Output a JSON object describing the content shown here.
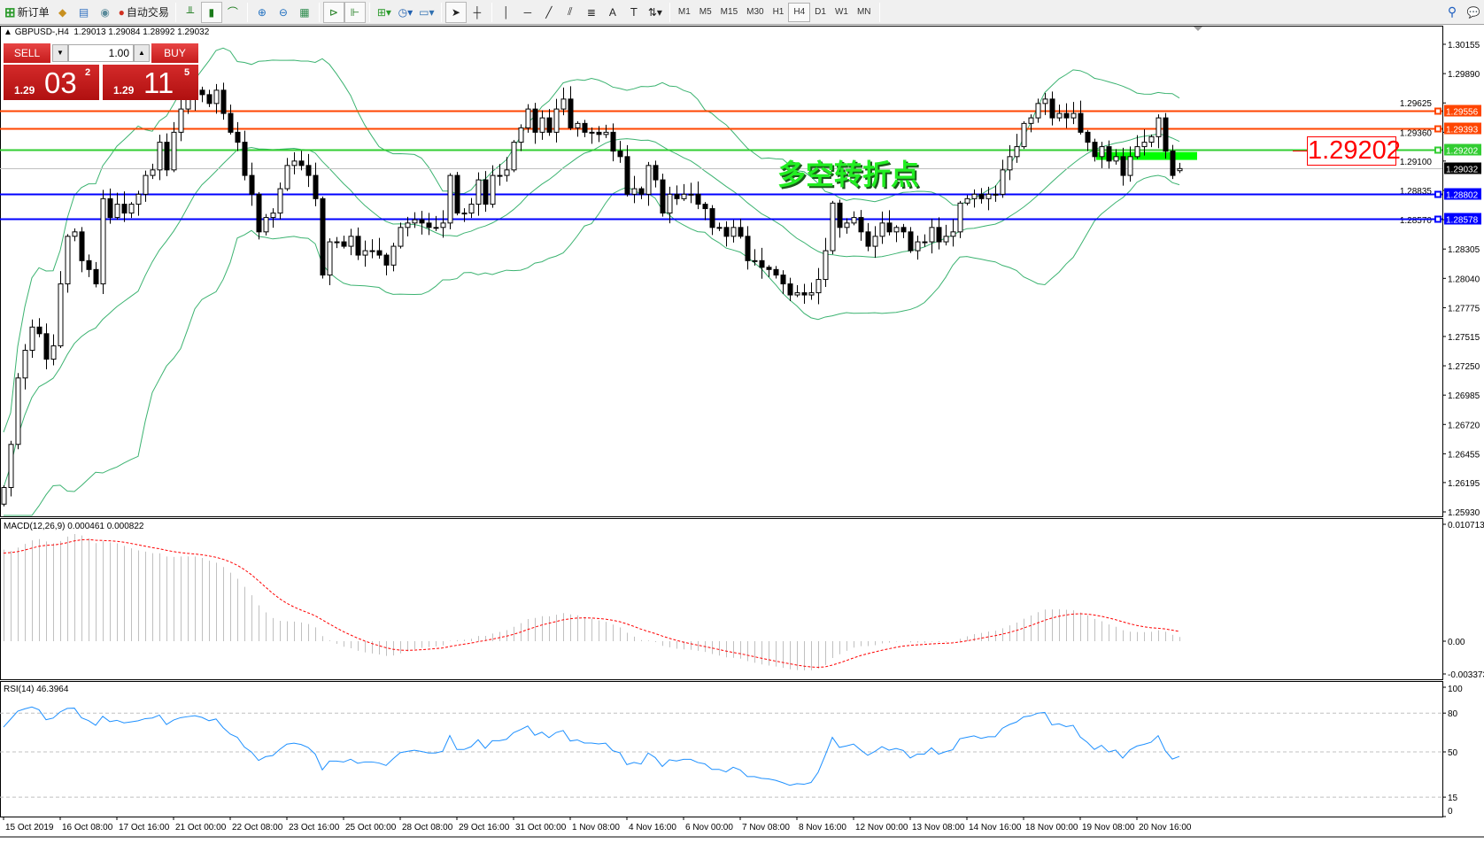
{
  "toolbar": {
    "new_order_label": "新订单",
    "auto_trading_label": "自动交易",
    "icons": [
      "new-order-icon",
      "market-watch-icon",
      "data-window-icon",
      "signals-icon",
      "auto-trading-icon",
      "bar-chart-icon",
      "candlestick-icon",
      "line-chart-icon",
      "zoom-in-icon",
      "zoom-out-icon",
      "tile-windows-icon",
      "auto-scroll-icon",
      "chart-shift-icon",
      "add-indicator-icon",
      "periods-icon",
      "templates-icon",
      "cursor-icon",
      "crosshair-icon",
      "vertical-line-icon",
      "horizontal-line-icon",
      "trendline-icon",
      "fibonacci-icon",
      "channel-icon",
      "text-icon",
      "text-label-icon",
      "arrows-icon",
      "search-icon",
      "chat-icon"
    ],
    "timeframes": [
      "M1",
      "M5",
      "M15",
      "M30",
      "H1",
      "H4",
      "D1",
      "W1",
      "MN"
    ],
    "active_timeframe": "H4"
  },
  "chart": {
    "symbol_header": "GBPUSD-,H4",
    "ohlc_header": "1.29013 1.29084 1.28992 1.29032",
    "annotation_text": "多空转折点",
    "big_price_label": "1.29202"
  },
  "one_click": {
    "sell_label": "SELL",
    "buy_label": "BUY",
    "volume": "1.00",
    "sell_price": {
      "prefix": "1.29",
      "big": "03",
      "sup": "2"
    },
    "buy_price": {
      "prefix": "1.29",
      "big": "11",
      "sup": "5"
    }
  },
  "chart_data": {
    "type": "candlestick",
    "symbol": "GBPUSD",
    "timeframe": "H4",
    "price_axis_ticks": [
      "1.30155",
      "1.29890",
      "1.29625",
      "1.29360",
      "1.29100",
      "1.28835",
      "1.28570",
      "1.28305",
      "1.28040",
      "1.27775",
      "1.27515",
      "1.27250",
      "1.26985",
      "1.26720",
      "1.26455",
      "1.26195",
      "1.25930"
    ],
    "ylim": [
      1.2593,
      1.30155
    ],
    "time_labels": [
      "15 Oct 2019",
      "16 Oct 08:00",
      "17 Oct 16:00",
      "21 Oct 00:00",
      "22 Oct 08:00",
      "23 Oct 16:00",
      "25 Oct 00:00",
      "28 Oct 08:00",
      "29 Oct 16:00",
      "31 Oct 00:00",
      "1 Nov 08:00",
      "4 Nov 16:00",
      "6 Nov 00:00",
      "7 Nov 08:00",
      "8 Nov 16:00",
      "12 Nov 00:00",
      "13 Nov 08:00",
      "14 Nov 16:00",
      "18 Nov 00:00",
      "19 Nov 08:00",
      "20 Nov 16:00"
    ],
    "bars_per_time_label": 8,
    "closes": [
      1.2615,
      1.2654,
      1.2714,
      1.2739,
      1.276,
      1.2754,
      1.2731,
      1.2743,
      1.2799,
      1.2842,
      1.2846,
      1.282,
      1.2812,
      1.2799,
      1.2876,
      1.2859,
      1.2871,
      1.2863,
      1.2871,
      1.288,
      1.2897,
      1.2902,
      1.2927,
      1.2902,
      1.2936,
      1.2957,
      1.2966,
      1.2974,
      1.297,
      1.2962,
      1.2974,
      1.2953,
      1.2936,
      1.2927,
      1.2897,
      1.288,
      1.2846,
      1.2859,
      1.2863,
      1.2885,
      1.2906,
      1.291,
      1.2906,
      1.2897,
      1.2876,
      1.2807,
      1.2837,
      1.2837,
      1.2833,
      1.2842,
      1.2825,
      1.2829,
      1.2829,
      1.2825,
      1.2816,
      1.2833,
      1.285,
      1.2854,
      1.2857,
      1.2854,
      1.285,
      1.285,
      1.2854,
      1.2897,
      1.2863,
      1.2863,
      1.2871,
      1.2893,
      1.2871,
      1.2897,
      1.2897,
      1.2902,
      1.2927,
      1.294,
      1.2957,
      1.2936,
      1.2949,
      1.2936,
      1.2957,
      1.2966,
      1.294,
      1.2944,
      1.2936,
      1.2936,
      1.2934,
      1.2936,
      1.2919,
      1.2914,
      1.288,
      1.2885,
      1.288,
      1.2906,
      1.2893,
      1.2863,
      1.288,
      1.2876,
      1.288,
      1.288,
      1.2871,
      1.2867,
      1.285,
      1.285,
      1.2842,
      1.285,
      1.2842,
      1.282,
      1.282,
      1.2814,
      1.2812,
      1.2807,
      1.2799,
      1.2789,
      1.2791,
      1.2789,
      1.2791,
      1.2803,
      1.2829,
      1.2872,
      1.285,
      1.2854,
      1.2859,
      1.2846,
      1.2833,
      1.2842,
      1.2854,
      1.2846,
      1.285,
      1.2846,
      1.2829,
      1.2837,
      1.2837,
      1.285,
      1.2837,
      1.2842,
      1.2846,
      1.2872,
      1.2876,
      1.288,
      1.2876,
      1.288,
      1.288,
      1.2902,
      1.2914,
      1.2923,
      1.2944,
      1.2949,
      1.2962,
      1.2966,
      1.2949,
      1.2953,
      1.2949,
      1.2953,
      1.2936,
      1.2927,
      1.2914,
      1.2923,
      1.291,
      1.2914,
      1.2897,
      1.2914,
      1.2923,
      1.2927,
      1.2932,
      1.2949,
      1.2919,
      1.2897,
      1.29032
    ],
    "last_bar": {
      "open": 1.29013,
      "high": 1.29084,
      "low": 1.28992,
      "close": 1.29032
    },
    "bollinger": {
      "period": 20,
      "deviation": 2,
      "color": "#3cb371"
    },
    "levels": [
      {
        "price": 1.29556,
        "label": "1.29556",
        "color": "#ff4500"
      },
      {
        "price": 1.29393,
        "label": "1.29393",
        "color": "#ff4500"
      },
      {
        "price": 1.29202,
        "label": "1.29202",
        "color": "#32cd32"
      },
      {
        "price": 1.29032,
        "label": "1.29032",
        "color": "#c0c0c0",
        "label_bg": "#000000"
      },
      {
        "price": 1.28802,
        "label": "1.28802",
        "color": "#0000ff"
      },
      {
        "price": 1.28578,
        "label": "1.28578",
        "color": "#0000ff"
      }
    ],
    "zone_price": 1.2915,
    "zone_color": "#00ff00",
    "macd": {
      "title": "MACD(12,26,9) 0.000461 0.000822",
      "ticks": [
        "0.010713",
        "0.00",
        "-0.003373"
      ],
      "ylim": [
        -0.003373,
        0.010713
      ],
      "histogram_color": "#c0c0c0",
      "signal_color": "#ff0000"
    },
    "rsi": {
      "title": "RSI(14) 46.3964",
      "ticks": [
        "100",
        "80",
        "50",
        "15",
        "0"
      ],
      "levels": [
        80,
        50,
        15
      ],
      "ylim": [
        0,
        100
      ],
      "color": "#1e90ff"
    }
  }
}
